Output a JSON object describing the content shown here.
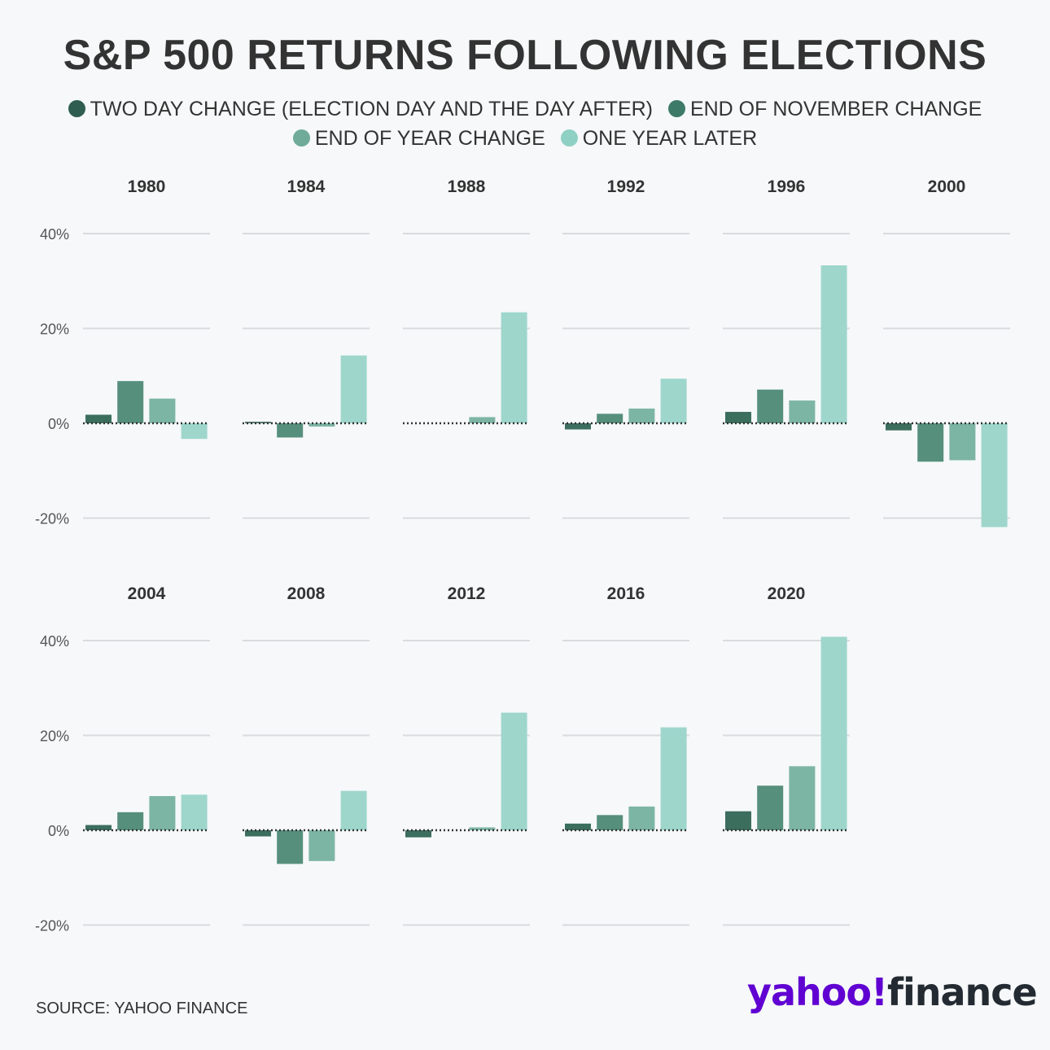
{
  "title": "S&P 500 RETURNS FOLLOWING ELECTIONS",
  "source": "SOURCE: YAHOO FINANCE",
  "logo": {
    "yahoo": "yahoo!",
    "finance": "finance"
  },
  "colors": {
    "two_day": "#3c6e5e",
    "end_nov": "#568f7c",
    "end_year": "#7db5a4",
    "one_year": "#9ed6cc",
    "grid": "#d8dcdf",
    "logo_purple": "#6001d2"
  },
  "chart_data": {
    "type": "bar",
    "series_names": [
      "TWO DAY CHANGE (ELECTION DAY AND THE DAY AFTER)",
      "END OF NOVEMBER CHANGE",
      "END OF YEAR CHANGE",
      "ONE YEAR LATER"
    ],
    "y_ticks": [
      40,
      20,
      0,
      -20
    ],
    "y_tick_labels": [
      "40%",
      "20%",
      "0%",
      "-20%"
    ],
    "ylim": [
      -20,
      40
    ],
    "panels": [
      {
        "year": "1980",
        "values": [
          1.8,
          8.9,
          5.2,
          -3.3
        ]
      },
      {
        "year": "1984",
        "values": [
          0.3,
          -3.0,
          -0.7,
          14.3
        ]
      },
      {
        "year": "1988",
        "values": [
          0.0,
          0.0,
          1.3,
          23.4
        ]
      },
      {
        "year": "1992",
        "values": [
          -1.3,
          2.0,
          3.1,
          9.4
        ]
      },
      {
        "year": "1996",
        "values": [
          2.4,
          7.1,
          4.8,
          33.3
        ]
      },
      {
        "year": "2000",
        "values": [
          -1.5,
          -8.1,
          -7.8,
          -21.9
        ]
      },
      {
        "year": "2004",
        "values": [
          1.1,
          3.8,
          7.2,
          7.5
        ]
      },
      {
        "year": "2008",
        "values": [
          -1.3,
          -7.1,
          -6.5,
          8.3
        ]
      },
      {
        "year": "2012",
        "values": [
          -1.5,
          0.0,
          0.6,
          24.8
        ]
      },
      {
        "year": "2016",
        "values": [
          1.4,
          3.2,
          5.0,
          21.7
        ]
      },
      {
        "year": "2020",
        "values": [
          4.0,
          9.4,
          13.5,
          40.8
        ]
      }
    ]
  }
}
